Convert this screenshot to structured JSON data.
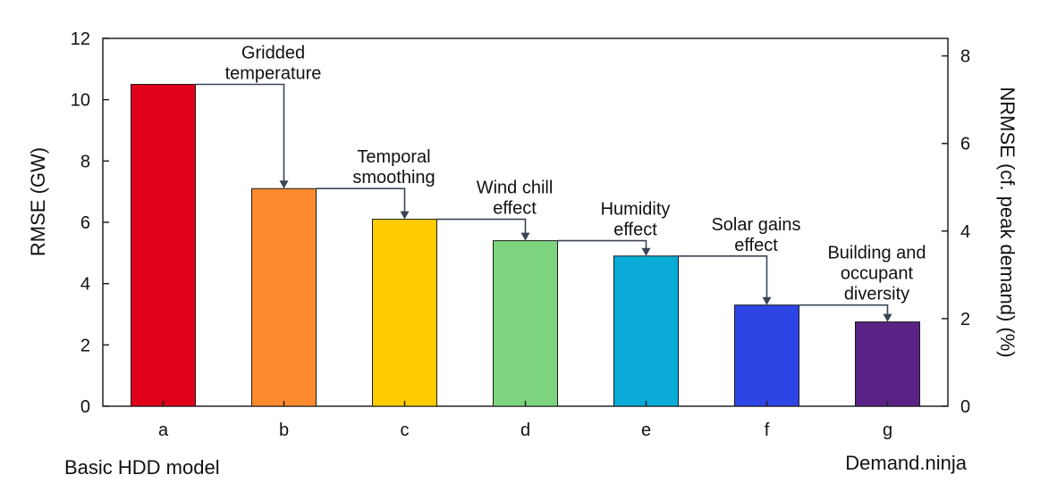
{
  "chart_data": {
    "type": "bar",
    "categories": [
      "a",
      "b",
      "c",
      "d",
      "e",
      "f",
      "g"
    ],
    "values": [
      10.5,
      7.1,
      6.1,
      5.4,
      4.9,
      3.3,
      2.75
    ],
    "colors": [
      "#e0001b",
      "#ff8a2e",
      "#ffcc00",
      "#7dd47f",
      "#0aabd6",
      "#2e45e6",
      "#5b2385"
    ],
    "ylabel": "RMSE (GW)",
    "y2label": "NRMSE (cf. peak demand) (%)",
    "ylim": [
      0,
      12
    ],
    "yticks": [
      0,
      2,
      4,
      6,
      8,
      10,
      12
    ],
    "y2lim": [
      0,
      8.4
    ],
    "y2ticks": [
      0,
      2,
      4,
      6,
      8
    ],
    "annotations": [
      {
        "lines": [
          "Gridded",
          "temperature"
        ]
      },
      {
        "lines": [
          "Temporal",
          "smoothing"
        ]
      },
      {
        "lines": [
          "Wind chill",
          "effect"
        ]
      },
      {
        "lines": [
          "Humidity",
          "effect"
        ]
      },
      {
        "lines": [
          "Solar gains",
          "effect"
        ]
      },
      {
        "lines": [
          "Building and",
          "occupant",
          "diversity"
        ]
      }
    ],
    "start_label": "Basic HDD model",
    "end_label": "Demand.ninja"
  }
}
